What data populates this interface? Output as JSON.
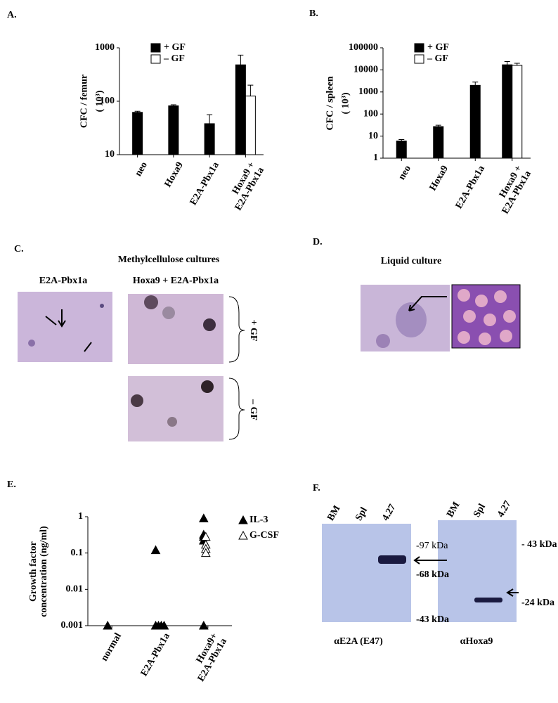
{
  "chart_data": [
    {
      "type": "bar",
      "panel_label": "A.",
      "ylabel": "CFC / femur",
      "ylabel_unit": "( 10³)",
      "categories": [
        "neo",
        "Hoxa9",
        "E2A-Pbx1a",
        "Hoxa9 + E2A-Pbx1a"
      ],
      "series": [
        {
          "name": "+ GF",
          "color": "#000000",
          "values": [
            62,
            82,
            38,
            480
          ],
          "errors": [
            3,
            4,
            18,
            250
          ]
        },
        {
          "name": "– GF",
          "color": "#ffffff",
          "values": [
            null,
            null,
            null,
            125
          ],
          "errors": [
            null,
            null,
            null,
            75
          ]
        }
      ],
      "ylim": [
        10,
        1000
      ],
      "yticks": [
        10,
        100,
        1000
      ],
      "log_scale": true
    },
    {
      "type": "bar",
      "panel_label": "B.",
      "ylabel": "CFC / spleen",
      "ylabel_unit": "( 10³)",
      "categories": [
        "neo",
        "Hoxa9",
        "E2A-Pbx1a",
        "Hoxa9 + E2A-Pbx1a"
      ],
      "series": [
        {
          "name": "+ GF",
          "color": "#000000",
          "values": [
            6,
            27,
            2000,
            17000
          ],
          "errors": [
            1,
            4,
            800,
            7000
          ]
        },
        {
          "name": "– GF",
          "color": "#ffffff",
          "values": [
            null,
            null,
            null,
            16000
          ],
          "errors": [
            null,
            null,
            null,
            4000
          ]
        }
      ],
      "ylim": [
        1,
        100000
      ],
      "yticks": [
        1,
        10,
        100,
        1000,
        10000,
        100000
      ],
      "log_scale": true
    },
    {
      "type": "scatter",
      "panel_label": "E.",
      "ylabel": "Growth factor concentration (ng/ml)",
      "categories": [
        "normal",
        "E2A-Pbx1a",
        "Hoxa9+ E2A-Pbx1a"
      ],
      "series": [
        {
          "name": "IL-3",
          "color": "#000000",
          "marker": "filled",
          "x": [
            "normal",
            "E2A-Pbx1a",
            "E2A-Pbx1a",
            "E2A-Pbx1a",
            "E2A-Pbx1a",
            "E2A-Pbx1a",
            "Hoxa9+ E2A-Pbx1a",
            "Hoxa9+ E2A-Pbx1a",
            "Hoxa9+ E2A-Pbx1a",
            "Hoxa9+ E2A-Pbx1a",
            "Hoxa9+ E2A-Pbx1a"
          ],
          "values": [
            0.001,
            0.12,
            0.001,
            0.001,
            0.001,
            0.001,
            0.9,
            0.32,
            0.28,
            0.22,
            0.001
          ]
        },
        {
          "name": "G-CSF",
          "color": "#000000",
          "marker": "open",
          "x": [
            "Hoxa9+ E2A-Pbx1a",
            "Hoxa9+ E2A-Pbx1a",
            "Hoxa9+ E2A-Pbx1a",
            "Hoxa9+ E2A-Pbx1a"
          ],
          "values": [
            0.28,
            0.17,
            0.13,
            0.1
          ]
        }
      ],
      "ylim": [
        0.001,
        1
      ],
      "yticks": [
        0.001,
        0.01,
        0.1,
        1
      ],
      "log_scale": true
    }
  ],
  "figures": {
    "C": {
      "label": "C.",
      "title": "Methylcellulose cultures",
      "left_caption": "E2A-Pbx1a",
      "right_caption": "Hoxa9 + E2A-Pbx1a",
      "plus": "+ GF",
      "minus": "– GF"
    },
    "D": {
      "label": "D.",
      "title": "Liquid  culture"
    },
    "F": {
      "label": "F.",
      "lanes": [
        "BM",
        "Spl",
        "4.27"
      ],
      "blot1": {
        "markers": [
          "-97 kDa",
          "-68 kDa",
          "-43 kDa"
        ],
        "caption": "αE2A (E47)"
      },
      "blot2": {
        "markers": [
          "- 43 kDa",
          "-24 kDa"
        ],
        "caption": "αHoxa9"
      }
    }
  }
}
